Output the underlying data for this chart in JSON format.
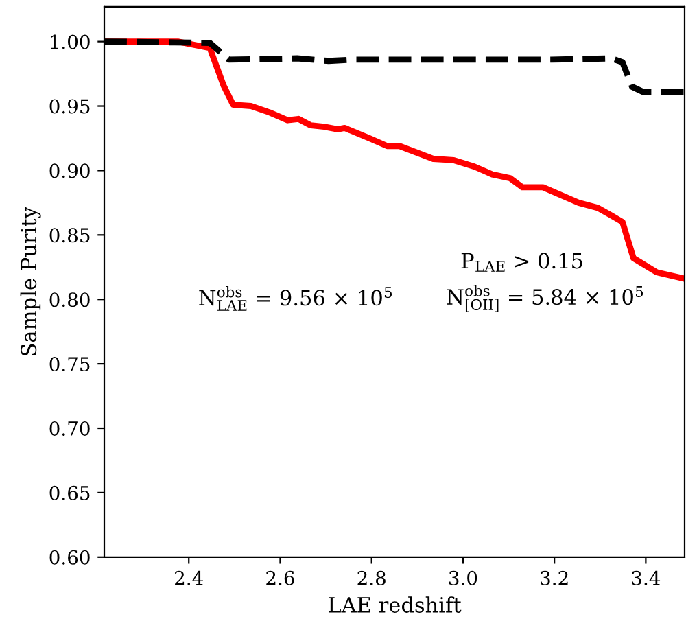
{
  "chart_data": {
    "type": "line",
    "xlabel": "LAE redshift",
    "ylabel": "Sample Purity",
    "xlim": [
      2.215,
      3.485
    ],
    "xticks": [
      2.4,
      2.6,
      2.8,
      {
        "value": 3,
        "label": "3.0"
      },
      3.2,
      3.4
    ],
    "ylim": [
      0.6,
      1.027
    ],
    "yticks": [
      {
        "value": 0.6,
        "label": "0.60"
      },
      0.65,
      {
        "value": 0.7,
        "label": "0.70"
      },
      0.75,
      {
        "value": 0.8,
        "label": "0.80"
      },
      0.85,
      {
        "value": 0.9,
        "label": "0.90"
      },
      0.95,
      {
        "value": 1,
        "label": "1.00"
      }
    ],
    "grid": false,
    "legend": false,
    "series": [
      {
        "color": "#ff0000",
        "line_style": "solid",
        "x": [
          2.215,
          2.376,
          2.446,
          2.476,
          2.497,
          2.536,
          2.577,
          2.616,
          2.64,
          2.667,
          2.696,
          2.726,
          2.741,
          2.795,
          2.834,
          2.861,
          2.935,
          2.98,
          3.025,
          3.064,
          3.103,
          3.13,
          3.175,
          3.253,
          3.295,
          3.325,
          3.349,
          3.373,
          3.424,
          3.485
        ],
        "values": [
          1.0,
          1.0,
          0.995,
          0.966,
          0.951,
          0.95,
          0.945,
          0.939,
          0.94,
          0.935,
          0.934,
          0.932,
          0.933,
          0.925,
          0.919,
          0.919,
          0.909,
          0.908,
          0.903,
          0.897,
          0.894,
          0.887,
          0.887,
          0.875,
          0.871,
          0.865,
          0.86,
          0.832,
          0.821,
          0.816
        ]
      },
      {
        "color": "#000000",
        "line_style": "dashed",
        "x": [
          2.215,
          2.446,
          2.488,
          2.637,
          2.706,
          2.757,
          3.194,
          3.325,
          3.349,
          3.37,
          3.394,
          3.485
        ],
        "values": [
          1.0,
          0.999,
          0.986,
          0.987,
          0.985,
          0.986,
          0.986,
          0.987,
          0.984,
          0.965,
          0.961,
          0.961
        ]
      }
    ],
    "annotations": [
      "P$_{LAE}$ > 0.15",
      "N$^{obs}$$_{LAE}$ = 9.56 × 10$^{5}$",
      "N$^{obs}$$_{[OII]}$ = 5.84 × 10$^{5}$"
    ]
  }
}
